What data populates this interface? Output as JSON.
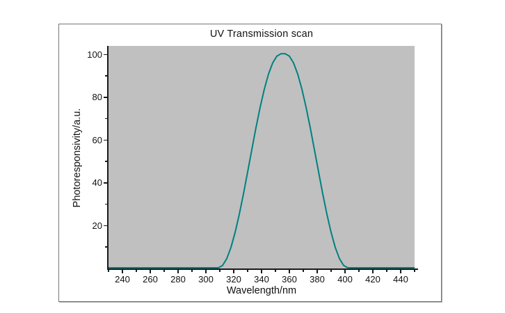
{
  "chart_data": {
    "type": "line",
    "title": "UV Transmission scan",
    "xlabel": "Wavelength/nm",
    "ylabel": "Photoresponsivity/a.u.",
    "xlim": [
      230,
      450
    ],
    "ylim": [
      0,
      104
    ],
    "grid": false,
    "legend": "none",
    "x_major_ticks": [
      240,
      260,
      280,
      300,
      320,
      340,
      360,
      380,
      400,
      420,
      440
    ],
    "x_minor_ticks": [
      230,
      250,
      270,
      290,
      310,
      330,
      350,
      370,
      390,
      410,
      430,
      450
    ],
    "y_major_ticks": [
      20,
      40,
      60,
      80,
      100
    ],
    "y_minor_ticks": [
      10,
      30,
      50,
      70,
      90
    ],
    "colors": {
      "curve": "#008080",
      "plot_background": "#c0c0c0",
      "axis": "#1a1a1a",
      "frame_border": "#767676"
    },
    "series": [
      {
        "name": "photoresponsivity",
        "x": [
          230,
          240,
          250,
          260,
          270,
          280,
          290,
          300,
          306,
          309,
          312,
          315,
          318,
          321,
          324,
          327,
          330,
          333,
          336,
          339,
          342,
          345,
          348,
          351,
          354,
          357,
          360,
          363,
          366,
          369,
          372,
          375,
          378,
          381,
          384,
          387,
          390,
          393,
          396,
          399,
          402,
          405,
          410,
          420,
          430,
          440,
          450
        ],
        "y": [
          0,
          0,
          0,
          0,
          0,
          0,
          0,
          0,
          0,
          0,
          1.1,
          4.3,
          9.5,
          16.5,
          25,
          34.5,
          44.8,
          55.2,
          65.5,
          75,
          83.5,
          90.5,
          95.7,
          98.9,
          100,
          100,
          98.9,
          95.7,
          90.5,
          83.5,
          75,
          65.5,
          55.2,
          44.8,
          34.5,
          25,
          16.5,
          9.5,
          4.3,
          1.1,
          0,
          0,
          0,
          0,
          0,
          0,
          0
        ]
      }
    ]
  }
}
